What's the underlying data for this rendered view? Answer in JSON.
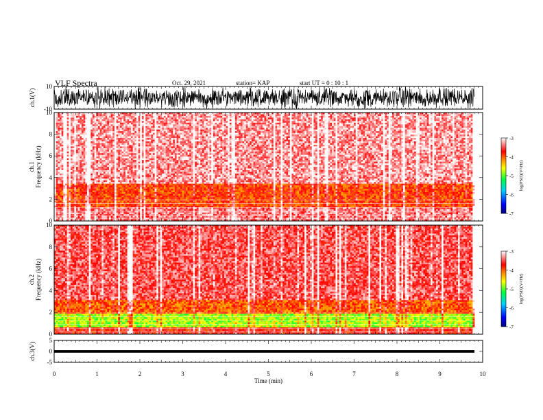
{
  "header": {
    "title": "VLF Spectra",
    "date": "Oct. 29, 2021",
    "station": "station= KAP",
    "start_ut": "start  UT =   0 : 10 : 1"
  },
  "chart_data": [
    {
      "type": "line",
      "panel": "ch1-waveform",
      "ylabel": "ch.1(V)",
      "ylim": [
        -10,
        10
      ],
      "yticks": [
        "10",
        "-10"
      ],
      "xlim": [
        0,
        10
      ],
      "data_extent_min": 9.85,
      "note_values": "dense noise waveform spanning roughly -10 to 10 V"
    },
    {
      "type": "heatmap",
      "panel": "ch1-spectrogram",
      "ylabel": "ch.1\nFrequency  (kHz)",
      "ylim": [
        0,
        10
      ],
      "yticks": [
        "0",
        "2",
        "4",
        "6",
        "8",
        "10"
      ],
      "xlim": [
        0,
        10
      ],
      "bands": [
        {
          "from_khz": 0,
          "to_khz": 1.2,
          "level": -3.4
        },
        {
          "from_khz": 1.2,
          "to_khz": 3.4,
          "level": -3.9
        },
        {
          "from_khz": 3.4,
          "to_khz": 10,
          "level": -3.3
        }
      ],
      "colorbar": {
        "label": "log(PSD)(V²/Hz)",
        "range": [
          -7,
          -3
        ],
        "ticks": [
          "-3",
          "-4",
          "-5",
          "-6",
          "-7"
        ]
      }
    },
    {
      "type": "heatmap",
      "panel": "ch2-spectrogram",
      "ylabel": "ch.2\nFrequency  (kHz)",
      "ylim": [
        0,
        10
      ],
      "yticks": [
        "0",
        "2",
        "4",
        "6",
        "8",
        "10"
      ],
      "xlim": [
        0,
        10
      ],
      "bands": [
        {
          "from_khz": 0,
          "to_khz": 0.6,
          "level": -3.7
        },
        {
          "from_khz": 0.6,
          "to_khz": 1.8,
          "level": -4.8
        },
        {
          "from_khz": 1.8,
          "to_khz": 3.2,
          "level": -4.0
        },
        {
          "from_khz": 3.2,
          "to_khz": 10,
          "level": -3.5
        }
      ],
      "colorbar": {
        "label": "log(PSD)(V²/Hz)",
        "range": [
          -7,
          -3
        ],
        "ticks": [
          "-3",
          "-4",
          "-5",
          "-6",
          "-7"
        ]
      }
    },
    {
      "type": "line",
      "panel": "ch3-waveform",
      "ylabel": "ch.3(V)",
      "ylim": [
        -5,
        5
      ],
      "yticks": [
        "5",
        "0",
        "-5"
      ],
      "xlim": [
        0,
        10
      ],
      "values_range": [
        -0.6,
        0.6
      ]
    }
  ],
  "xaxis": {
    "xlabel": "Time  (min)",
    "ticks": [
      "0",
      "1",
      "2",
      "3",
      "4",
      "5",
      "6",
      "7",
      "8",
      "9",
      "10"
    ]
  },
  "colors": {
    "colormap": [
      "#000080",
      "#0000ff",
      "#00d0ff",
      "#00ff40",
      "#ffff00",
      "#ff8000",
      "#ff0000",
      "#ffffff"
    ]
  }
}
